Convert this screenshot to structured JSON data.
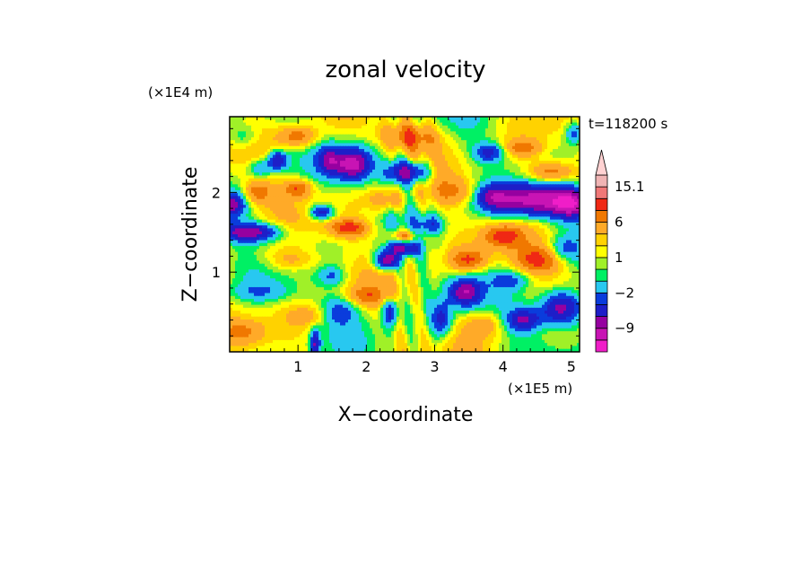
{
  "chart_data": {
    "type": "heatmap",
    "title": "zonal velocity",
    "xlabel": "X−coordinate",
    "ylabel": "Z−coordinate",
    "x_scale_label": "(×1E5 m)",
    "y_scale_label": "(×1E4 m)",
    "time_label": "t=118200 s",
    "xlim": [
      0,
      5.12
    ],
    "ylim": [
      0,
      2.95
    ],
    "x_ticks": [
      1,
      2,
      3,
      4,
      5
    ],
    "x_tick_labels": [
      "1",
      "2",
      "3",
      "4",
      "5"
    ],
    "y_ticks": [
      1,
      2
    ],
    "y_tick_labels": [
      "1",
      "2"
    ],
    "colorbar": {
      "levels": [
        -15,
        -12,
        -9,
        -6,
        -4,
        -2,
        -1,
        0,
        1,
        2,
        4,
        6,
        9,
        12,
        15.1
      ],
      "colors": [
        "#f01ec8",
        "#c814b4",
        "#9600a0",
        "#1e1ec8",
        "#0a3cdc",
        "#28c8f0",
        "#00f064",
        "#a0f028",
        "#ffff00",
        "#ffd200",
        "#ffaa28",
        "#f07800",
        "#f02814",
        "#f07878",
        "#f0b4b4",
        "#ffd2d2"
      ],
      "labels": [
        {
          "value": 15.1,
          "text": "15.1"
        },
        {
          "value": 6,
          "text": "6"
        },
        {
          "value": 1,
          "text": "1"
        },
        {
          "value": -2,
          "text": "−2"
        },
        {
          "value": -9,
          "text": "−9"
        }
      ],
      "extend_max": true
    },
    "grid": false,
    "features": [
      {
        "x": 1.8,
        "z": 2.35,
        "amp": -13,
        "sx": 0.18,
        "sz": 0.14
      },
      {
        "x": 2.6,
        "z": 2.25,
        "amp": -11,
        "sx": 0.22,
        "sz": 0.1
      },
      {
        "x": 1.45,
        "z": 2.4,
        "amp": -8,
        "sx": 0.12,
        "sz": 0.12
      },
      {
        "x": 0.3,
        "z": 1.5,
        "amp": -11,
        "sx": 0.3,
        "sz": 0.08
      },
      {
        "x": 0.05,
        "z": 1.85,
        "amp": -9,
        "sx": 0.12,
        "sz": 0.1
      },
      {
        "x": 0.7,
        "z": 2.4,
        "amp": -9,
        "sx": 0.1,
        "sz": 0.08
      },
      {
        "x": 1.35,
        "z": 1.75,
        "amp": -8,
        "sx": 0.12,
        "sz": 0.06
      },
      {
        "x": 2.3,
        "z": 1.15,
        "amp": -12,
        "sx": 0.12,
        "sz": 0.08
      },
      {
        "x": 2.55,
        "z": 1.3,
        "amp": -9,
        "sx": 0.15,
        "sz": 0.06
      },
      {
        "x": 3.45,
        "z": 0.75,
        "amp": -11,
        "sx": 0.16,
        "sz": 0.12
      },
      {
        "x": 4.4,
        "z": 1.9,
        "amp": -13,
        "sx": 0.45,
        "sz": 0.14
      },
      {
        "x": 5.0,
        "z": 1.85,
        "amp": -11,
        "sx": 0.2,
        "sz": 0.12
      },
      {
        "x": 4.85,
        "z": 0.55,
        "amp": -12,
        "sx": 0.22,
        "sz": 0.15
      },
      {
        "x": 4.3,
        "z": 0.4,
        "amp": -9,
        "sx": 0.18,
        "sz": 0.1
      },
      {
        "x": 3.8,
        "z": 2.5,
        "amp": -7,
        "sx": 0.15,
        "sz": 0.08
      },
      {
        "x": 3.1,
        "z": 0.4,
        "amp": -7,
        "sx": 0.1,
        "sz": 0.15
      },
      {
        "x": 2.35,
        "z": 0.5,
        "amp": -8,
        "sx": 0.08,
        "sz": 0.12
      },
      {
        "x": 1.25,
        "z": 0.1,
        "amp": -9,
        "sx": 0.05,
        "sz": 0.12
      },
      {
        "x": 1.6,
        "z": 0.5,
        "amp": -5,
        "sx": 0.18,
        "sz": 0.12
      },
      {
        "x": 0.45,
        "z": 2.3,
        "amp": -5,
        "sx": 0.12,
        "sz": 0.08
      },
      {
        "x": 2.6,
        "z": 2.7,
        "amp": 6,
        "sx": 0.3,
        "sz": 0.12
      },
      {
        "x": 1.0,
        "z": 2.7,
        "amp": 6,
        "sx": 0.2,
        "sz": 0.1
      },
      {
        "x": 4.7,
        "z": 2.25,
        "amp": 7,
        "sx": 0.25,
        "sz": 0.1
      },
      {
        "x": 4.3,
        "z": 2.55,
        "amp": 5,
        "sx": 0.2,
        "sz": 0.08
      },
      {
        "x": 1.75,
        "z": 1.55,
        "amp": 7,
        "sx": 0.2,
        "sz": 0.08
      },
      {
        "x": 2.55,
        "z": 1.45,
        "amp": 6,
        "sx": 0.15,
        "sz": 0.06
      },
      {
        "x": 1.0,
        "z": 2.05,
        "amp": 6,
        "sx": 0.15,
        "sz": 0.08
      },
      {
        "x": 0.4,
        "z": 2.0,
        "amp": 5,
        "sx": 0.15,
        "sz": 0.1
      },
      {
        "x": 3.5,
        "z": 1.15,
        "amp": 6,
        "sx": 0.2,
        "sz": 0.1
      },
      {
        "x": 4.5,
        "z": 1.15,
        "amp": 6,
        "sx": 0.25,
        "sz": 0.12
      },
      {
        "x": 2.0,
        "z": 0.7,
        "amp": 4,
        "sx": 0.2,
        "sz": 0.08
      },
      {
        "x": 0.2,
        "z": 0.25,
        "amp": 3,
        "sx": 0.2,
        "sz": 0.1
      },
      {
        "x": 4.0,
        "z": 1.45,
        "amp": 6,
        "sx": 0.2,
        "sz": 0.1
      },
      {
        "x": 3.3,
        "z": 2.0,
        "amp": 4,
        "sx": 0.25,
        "sz": 0.12
      },
      {
        "x": 0.9,
        "z": 1.15,
        "amp": 3,
        "sx": 0.3,
        "sz": 0.1
      },
      {
        "x": 2.3,
        "z": 1.9,
        "amp": 4,
        "sx": 0.2,
        "sz": 0.1
      },
      {
        "x": 3.75,
        "z": 0.35,
        "amp": 3,
        "sx": 0.2,
        "sz": 0.1
      },
      {
        "x": 1.2,
        "z": 0.45,
        "amp": 2.5,
        "sx": 0.25,
        "sz": 0.1
      },
      {
        "x": 3.85,
        "z": 1.95,
        "amp": -6,
        "sx": 0.15,
        "sz": 0.1
      },
      {
        "x": 4.9,
        "z": 1.3,
        "amp": -4,
        "sx": 0.15,
        "sz": 0.1
      },
      {
        "x": 0.45,
        "z": 0.75,
        "amp": -3,
        "sx": 0.3,
        "sz": 0.08
      },
      {
        "x": 4.1,
        "z": 0.9,
        "amp": -4,
        "sx": 0.2,
        "sz": 0.08
      },
      {
        "x": 2.95,
        "z": 1.6,
        "amp": -5,
        "sx": 0.12,
        "sz": 0.08
      },
      {
        "x": 1.5,
        "z": 0.95,
        "amp": -4,
        "sx": 0.12,
        "sz": 0.08
      },
      {
        "x": 0.2,
        "z": 2.7,
        "amp": -3,
        "sx": 0.15,
        "sz": 0.1
      },
      {
        "x": 5.05,
        "z": 2.75,
        "amp": -6,
        "sx": 0.1,
        "sz": 0.1
      }
    ]
  }
}
